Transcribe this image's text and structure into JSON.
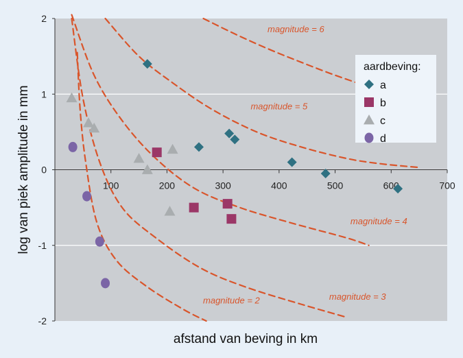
{
  "chart_data": {
    "type": "scatter",
    "xlabel": "afstand van beving in km",
    "ylabel": "log van piek amplitude in mm",
    "xlim": [
      0,
      700
    ],
    "ylim": [
      -2,
      2
    ],
    "x_ticks": [
      "100",
      "200",
      "300",
      "400",
      "500",
      "600",
      "700"
    ],
    "y_ticks": [
      "-2",
      "-1",
      "0",
      "1",
      "2"
    ],
    "grid": true,
    "legend": {
      "title": "aardbeving:",
      "position": "top-right"
    },
    "series": [
      {
        "name": "a",
        "marker": "diamond",
        "color": "#2f7182",
        "points": [
          [
            165,
            1.4
          ],
          [
            257,
            0.3
          ],
          [
            311,
            0.48
          ],
          [
            321,
            0.4
          ],
          [
            423,
            0.1
          ],
          [
            483,
            -0.05
          ],
          [
            612,
            -0.25
          ]
        ]
      },
      {
        "name": "b",
        "marker": "square",
        "color": "#9b3767",
        "points": [
          [
            182,
            0.23
          ],
          [
            248,
            -0.5
          ],
          [
            308,
            -0.45
          ],
          [
            315,
            -0.65
          ]
        ]
      },
      {
        "name": "c",
        "marker": "triangle",
        "color": "#a9adaf",
        "points": [
          [
            30,
            0.95
          ],
          [
            60,
            0.62
          ],
          [
            70,
            0.55
          ],
          [
            150,
            0.15
          ],
          [
            165,
            0.0
          ],
          [
            210,
            0.27
          ],
          [
            205,
            -0.55
          ]
        ]
      },
      {
        "name": "d",
        "marker": "circle",
        "color": "#7b65a6",
        "points": [
          [
            32,
            0.3
          ],
          [
            57,
            -0.35
          ],
          [
            80,
            -0.95
          ],
          [
            90,
            -1.5
          ]
        ]
      }
    ],
    "curves": [
      {
        "label": "magnitude = 2",
        "color": "#d9552b",
        "points": [
          [
            40,
            1.55
          ],
          [
            45,
            0.8
          ],
          [
            55,
            0.1
          ],
          [
            75,
            -0.7
          ],
          [
            110,
            -1.2
          ],
          [
            165,
            -1.55
          ],
          [
            230,
            -1.85
          ],
          [
            270,
            -2.0
          ]
        ]
      },
      {
        "name": "",
        "label": "magnitude = 3",
        "color": "#d9552b",
        "points": [
          [
            30,
            2.0
          ],
          [
            50,
            0.95
          ],
          [
            80,
            0.1
          ],
          [
            120,
            -0.5
          ],
          [
            180,
            -0.9
          ],
          [
            260,
            -1.3
          ],
          [
            340,
            -1.55
          ],
          [
            440,
            -1.78
          ],
          [
            520,
            -1.95
          ]
        ]
      },
      {
        "label": "magnitude = 4",
        "color": "#d9552b",
        "points": [
          [
            30,
            2.05
          ],
          [
            70,
            1.25
          ],
          [
            120,
            0.65
          ],
          [
            180,
            0.15
          ],
          [
            250,
            -0.25
          ],
          [
            330,
            -0.5
          ],
          [
            420,
            -0.7
          ],
          [
            520,
            -0.9
          ],
          [
            560,
            -1.0
          ]
        ]
      },
      {
        "label": "magnitude = 5",
        "color": "#d9552b",
        "points": [
          [
            90,
            2.0
          ],
          [
            150,
            1.5
          ],
          [
            210,
            1.15
          ],
          [
            280,
            0.8
          ],
          [
            360,
            0.5
          ],
          [
            440,
            0.3
          ],
          [
            520,
            0.15
          ],
          [
            580,
            0.08
          ],
          [
            650,
            0.03
          ]
        ]
      },
      {
        "label": "magnitude = 6",
        "color": "#d9552b",
        "points": [
          [
            265,
            2.0
          ],
          [
            320,
            1.8
          ],
          [
            380,
            1.6
          ],
          [
            440,
            1.42
          ],
          [
            500,
            1.25
          ],
          [
            560,
            1.1
          ],
          [
            610,
            1.0
          ],
          [
            660,
            0.95
          ]
        ]
      }
    ]
  }
}
